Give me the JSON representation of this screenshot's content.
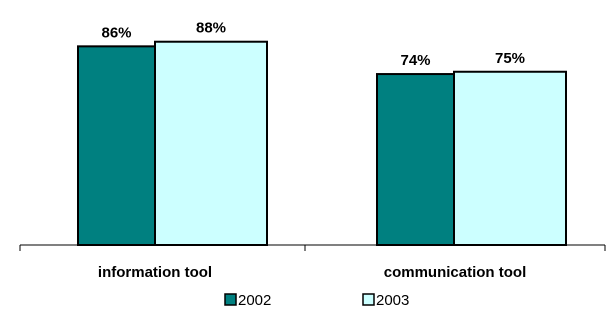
{
  "chart_data": {
    "type": "bar",
    "title": "",
    "xlabel": "",
    "ylabel": "",
    "ylim": [
      0,
      100
    ],
    "grid": false,
    "legend_position": "bottom",
    "categories": [
      "information tool",
      "communication tool"
    ],
    "series": [
      {
        "name": "2002",
        "values": [
          86,
          74
        ],
        "labels": [
          "86%",
          "74%"
        ],
        "color": "#008080"
      },
      {
        "name": "2003",
        "values": [
          88,
          75
        ],
        "labels": [
          "88%",
          "75%"
        ],
        "color": "#ccffff"
      }
    ]
  }
}
